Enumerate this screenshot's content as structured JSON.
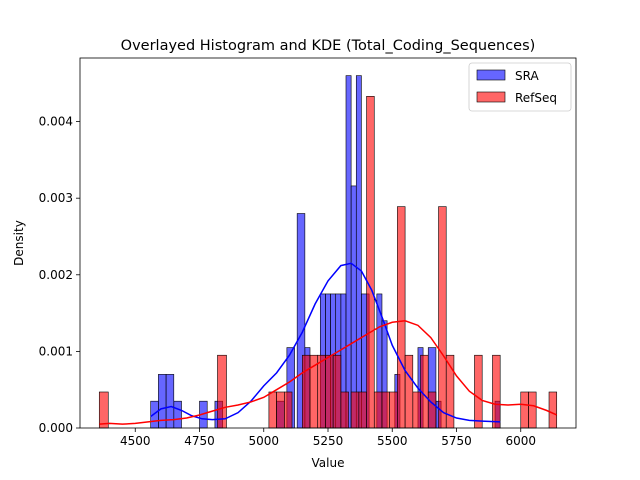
{
  "chart_data": {
    "type": "histogram",
    "title": "Overlayed Histogram and KDE (Total_Coding_Sequences)",
    "xlabel": "Value",
    "ylabel": "Density",
    "xlim": [
      4285,
      6215
    ],
    "ylim": [
      0,
      0.00483
    ],
    "xticks": [
      4500,
      4750,
      5000,
      5250,
      5500,
      5750,
      6000
    ],
    "yticks": [
      0.0,
      0.001,
      0.002,
      0.003,
      0.004
    ],
    "ytick_labels": [
      "0.000",
      "0.001",
      "0.002",
      "0.003",
      "0.004"
    ],
    "legend_position": "top-right",
    "series": [
      {
        "name": "SRA",
        "color": "#0000ff",
        "kde_color": "#0000ff",
        "bins": [
          [
            4560,
            4590,
            0.00035
          ],
          [
            4590,
            4620,
            0.0007
          ],
          [
            4620,
            4650,
            0.0007
          ],
          [
            4650,
            4680,
            0.00035
          ],
          [
            4750,
            4780,
            0.00035
          ],
          [
            4810,
            4840,
            0.00035
          ],
          [
            5050,
            5080,
            0.00035
          ],
          [
            5090,
            5120,
            0.00105
          ],
          [
            5130,
            5160,
            0.0028
          ],
          [
            5160,
            5180,
            0.00105
          ],
          [
            5220,
            5240,
            0.00175
          ],
          [
            5240,
            5260,
            0.00175
          ],
          [
            5260,
            5280,
            0.00175
          ],
          [
            5280,
            5300,
            0.00175
          ],
          [
            5300,
            5320,
            0.00175
          ],
          [
            5320,
            5340,
            0.0046
          ],
          [
            5340,
            5360,
            0.00316
          ],
          [
            5360,
            5380,
            0.0046
          ],
          [
            5380,
            5410,
            0.00175
          ],
          [
            5440,
            5460,
            0.00175
          ],
          [
            5460,
            5480,
            0.0014
          ],
          [
            5510,
            5530,
            0.0007
          ],
          [
            5600,
            5620,
            0.00105
          ],
          [
            5640,
            5670,
            0.00105
          ],
          [
            5670,
            5690,
            0.00035
          ],
          [
            5900,
            5920,
            0.00035
          ]
        ],
        "kde": [
          [
            4560,
            0.00015
          ],
          [
            4600,
            0.00025
          ],
          [
            4640,
            0.00028
          ],
          [
            4680,
            0.00023
          ],
          [
            4720,
            0.00016
          ],
          [
            4760,
            0.00012
          ],
          [
            4800,
            0.00011
          ],
          [
            4850,
            0.00012
          ],
          [
            4900,
            0.0002
          ],
          [
            4950,
            0.00035
          ],
          [
            5000,
            0.00055
          ],
          [
            5050,
            0.00072
          ],
          [
            5100,
            0.00095
          ],
          [
            5150,
            0.00125
          ],
          [
            5200,
            0.00162
          ],
          [
            5250,
            0.00192
          ],
          [
            5300,
            0.00212
          ],
          [
            5340,
            0.00215
          ],
          [
            5380,
            0.00205
          ],
          [
            5420,
            0.0018
          ],
          [
            5460,
            0.00145
          ],
          [
            5500,
            0.00108
          ],
          [
            5550,
            0.00075
          ],
          [
            5600,
            0.00052
          ],
          [
            5650,
            0.00034
          ],
          [
            5700,
            0.0002
          ],
          [
            5750,
            0.00013
          ],
          [
            5800,
            0.0001
          ],
          [
            5850,
            9e-05
          ],
          [
            5920,
            8e-05
          ]
        ]
      },
      {
        "name": "RefSeq",
        "color": "#ff0000",
        "kde_color": "#ff0000",
        "bins": [
          [
            4360,
            4395,
            0.00047
          ],
          [
            4820,
            4855,
            0.00095
          ],
          [
            5020,
            5050,
            0.00047
          ],
          [
            5050,
            5080,
            0.00047
          ],
          [
            5080,
            5110,
            0.00047
          ],
          [
            5150,
            5180,
            0.00095
          ],
          [
            5180,
            5210,
            0.00095
          ],
          [
            5210,
            5240,
            0.00095
          ],
          [
            5240,
            5270,
            0.00095
          ],
          [
            5270,
            5300,
            0.00095
          ],
          [
            5300,
            5330,
            0.00047
          ],
          [
            5340,
            5370,
            0.00047
          ],
          [
            5370,
            5400,
            0.00047
          ],
          [
            5400,
            5430,
            0.00433
          ],
          [
            5430,
            5460,
            0.00047
          ],
          [
            5460,
            5490,
            0.00047
          ],
          [
            5490,
            5520,
            0.00047
          ],
          [
            5520,
            5550,
            0.00289
          ],
          [
            5550,
            5580,
            0.00095
          ],
          [
            5580,
            5610,
            0.00047
          ],
          [
            5610,
            5640,
            0.00095
          ],
          [
            5640,
            5670,
            0.00047
          ],
          [
            5680,
            5710,
            0.00289
          ],
          [
            5710,
            5740,
            0.00095
          ],
          [
            5820,
            5850,
            0.00095
          ],
          [
            5890,
            5920,
            0.00095
          ],
          [
            6000,
            6030,
            0.00047
          ],
          [
            6030,
            6060,
            0.00047
          ],
          [
            6110,
            6140,
            0.00047
          ]
        ],
        "kde": [
          [
            4360,
            5e-05
          ],
          [
            4400,
            6e-05
          ],
          [
            4450,
            5e-05
          ],
          [
            4500,
            6e-05
          ],
          [
            4550,
            8e-05
          ],
          [
            4600,
            0.0001
          ],
          [
            4650,
            0.00011
          ],
          [
            4700,
            0.00013
          ],
          [
            4750,
            0.00017
          ],
          [
            4800,
            0.00022
          ],
          [
            4850,
            0.00027
          ],
          [
            4900,
            0.0003
          ],
          [
            4950,
            0.00034
          ],
          [
            5000,
            0.0004
          ],
          [
            5050,
            0.0005
          ],
          [
            5100,
            0.0006
          ],
          [
            5150,
            0.00072
          ],
          [
            5200,
            0.00082
          ],
          [
            5250,
            0.00092
          ],
          [
            5300,
            0.00102
          ],
          [
            5350,
            0.00112
          ],
          [
            5400,
            0.00122
          ],
          [
            5450,
            0.00132
          ],
          [
            5500,
            0.00138
          ],
          [
            5550,
            0.0014
          ],
          [
            5600,
            0.00134
          ],
          [
            5650,
            0.00118
          ],
          [
            5700,
            0.00094
          ],
          [
            5750,
            0.00068
          ],
          [
            5800,
            0.00048
          ],
          [
            5850,
            0.00036
          ],
          [
            5900,
            0.00031
          ],
          [
            5950,
            0.0003
          ],
          [
            6000,
            0.00031
          ],
          [
            6050,
            0.00029
          ],
          [
            6100,
            0.00023
          ],
          [
            6140,
            0.00017
          ]
        ]
      }
    ]
  }
}
